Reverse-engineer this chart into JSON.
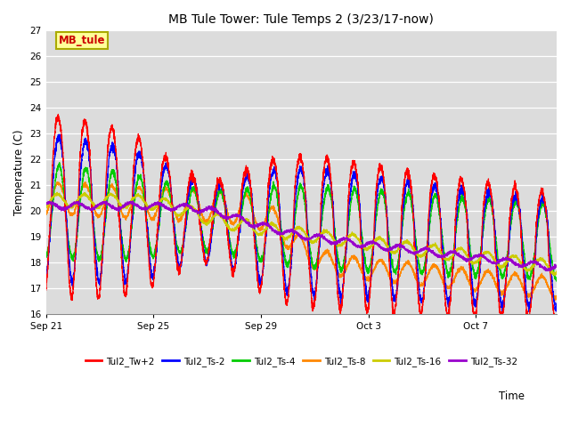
{
  "title": "MB Tule Tower: Tule Temps 2 (3/23/17-now)",
  "ylabel": "Temperature (C)",
  "xlabel": "Time",
  "ylim": [
    16.0,
    27.0
  ],
  "yticks": [
    16.0,
    17.0,
    18.0,
    19.0,
    20.0,
    21.0,
    22.0,
    23.0,
    24.0,
    25.0,
    26.0,
    27.0
  ],
  "bg_color": "#dcdcdc",
  "series_colors": [
    "#ff0000",
    "#0000ff",
    "#00cc00",
    "#ff8800",
    "#cccc00",
    "#9900cc"
  ],
  "series_labels": [
    "Tul2_Tw+2",
    "Tul2_Ts-2",
    "Tul2_Ts-4",
    "Tul2_Ts-8",
    "Tul2_Ts-16",
    "Tul2_Ts-32"
  ],
  "xtick_labels": [
    "Sep 21",
    "Sep 25",
    "Sep 29",
    "Oct 3",
    "Oct 7"
  ],
  "xtick_positions": [
    0,
    4,
    8,
    12,
    16
  ],
  "annotation_text": "MB_tule",
  "annotation_color": "#cc0000",
  "annotation_bg": "#ffff99",
  "annotation_border": "#aaaa00",
  "n_points": 4560,
  "n_days": 19
}
